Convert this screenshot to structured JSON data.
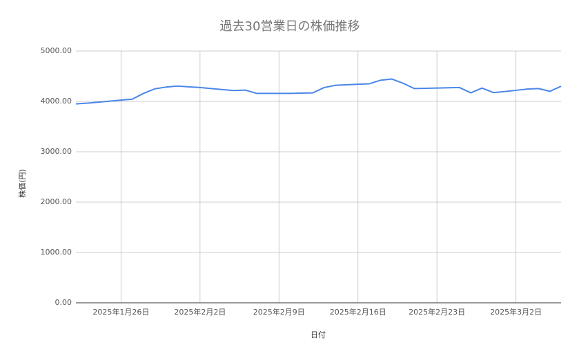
{
  "chart_data": {
    "type": "line",
    "title": "過去30営業日の株価推移",
    "x_label": "日付",
    "y_label": "株価(円)",
    "x": [
      "2025-01-22",
      "2025-01-23",
      "2025-01-24",
      "2025-01-25",
      "2025-01-26",
      "2025-01-27",
      "2025-01-28",
      "2025-01-29",
      "2025-01-30",
      "2025-01-31",
      "2025-02-01",
      "2025-02-02",
      "2025-02-03",
      "2025-02-04",
      "2025-02-05",
      "2025-02-06",
      "2025-02-07",
      "2025-02-08",
      "2025-02-09",
      "2025-02-10",
      "2025-02-11",
      "2025-02-12",
      "2025-02-13",
      "2025-02-14",
      "2025-02-15",
      "2025-02-16",
      "2025-02-17",
      "2025-02-18",
      "2025-02-19",
      "2025-02-20",
      "2025-02-21",
      "2025-02-22",
      "2025-02-23",
      "2025-02-24",
      "2025-02-25",
      "2025-02-26",
      "2025-02-27",
      "2025-02-28",
      "2025-03-01",
      "2025-03-02",
      "2025-03-03",
      "2025-03-04",
      "2025-03-05",
      "2025-03-06"
    ],
    "series": [
      {
        "name": "株価",
        "color": "#4a86e8",
        "values": [
          3950,
          3965,
          3985,
          4005,
          4025,
          4045,
          4160,
          4250,
          4285,
          4305,
          4290,
          4275,
          4255,
          4235,
          4215,
          4225,
          4160,
          4160,
          4160,
          4160,
          4165,
          4170,
          4275,
          4320,
          4330,
          4340,
          4350,
          4420,
          4445,
          4360,
          4255,
          4260,
          4265,
          4270,
          4275,
          4170,
          4265,
          4175,
          4195,
          4220,
          4245,
          4255,
          4200,
          4300
        ]
      }
    ],
    "xlim": [
      "2025-01-22",
      "2025-03-06"
    ],
    "xticks": [
      {
        "value": "2025-01-26",
        "label": "2025年1月26日"
      },
      {
        "value": "2025-02-02",
        "label": "2025年2月2日"
      },
      {
        "value": "2025-02-09",
        "label": "2025年2月9日"
      },
      {
        "value": "2025-02-16",
        "label": "2025年2月16日"
      },
      {
        "value": "2025-02-23",
        "label": "2025年2月23日"
      },
      {
        "value": "2025-03-02",
        "label": "2025年3月2日"
      }
    ],
    "ylim": [
      0,
      5000
    ],
    "yticks": [
      {
        "value": 0,
        "label": "0.00"
      },
      {
        "value": 1000,
        "label": "1000.00"
      },
      {
        "value": 2000,
        "label": "2000.00"
      },
      {
        "value": 3000,
        "label": "3000.00"
      },
      {
        "value": 4000,
        "label": "4000.00"
      },
      {
        "value": 5000,
        "label": "5000.00"
      }
    ],
    "grid": true
  }
}
